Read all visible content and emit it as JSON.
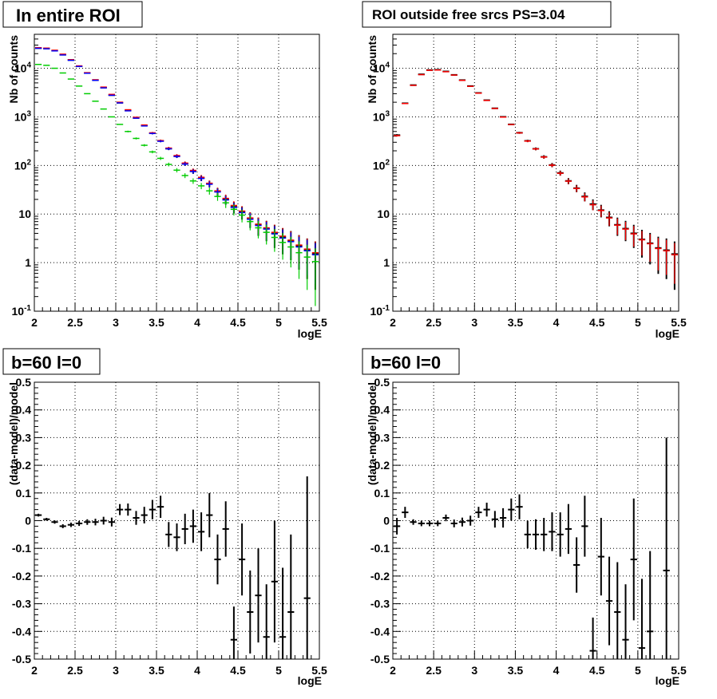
{
  "colors": {
    "data": "#000000",
    "model_total": "#ff0000",
    "model_blue": "#0000ff",
    "model_green": "#00cc00",
    "grid": "#000000",
    "frame": "#000000",
    "title_box_bg": "#ffffff"
  },
  "panels": [
    {
      "title": "In entire ROI",
      "xlabel": "logE",
      "ylabel": "Nb of counts"
    },
    {
      "title": "ROI outside free srcs PS=3.04",
      "xlabel": "logE",
      "ylabel": "Nb of counts"
    },
    {
      "title": "b=60 l=0",
      "xlabel": "logE",
      "ylabel": "(data-model)/model"
    },
    {
      "title": "b=60 l=0",
      "xlabel": "logE",
      "ylabel": "(data-model)/model"
    }
  ],
  "chart_data": [
    {
      "type": "scatter",
      "title": "In entire ROI",
      "xlabel": "logE",
      "ylabel": "Nb of counts",
      "log_y": true,
      "grid": true,
      "xlim": [
        2,
        5.5
      ],
      "ylim": [
        0.1,
        50000
      ],
      "x_ticks": [
        "2",
        "2.5",
        "3",
        "3.5",
        "4",
        "4.5",
        "5",
        "5.5"
      ],
      "y_ticks": [
        "10^-1",
        "1",
        "10",
        "10^2",
        "10^3",
        "10^4"
      ],
      "bin_width": 0.1,
      "x": [
        2.05,
        2.15,
        2.25,
        2.35,
        2.45,
        2.55,
        2.65,
        2.75,
        2.85,
        2.95,
        3.05,
        3.15,
        3.25,
        3.35,
        3.45,
        3.55,
        3.65,
        3.75,
        3.85,
        3.95,
        4.05,
        4.15,
        4.25,
        4.35,
        4.45,
        4.55,
        4.65,
        4.75,
        4.85,
        4.95,
        5.05,
        5.15,
        5.25,
        5.35,
        5.45
      ],
      "series": [
        {
          "style": "data points with error bars",
          "color": "#000000",
          "values": [
            26000,
            25500,
            23000,
            19000,
            14800,
            11000,
            8000,
            5700,
            4000,
            2800,
            1950,
            1350,
            950,
            660,
            460,
            320,
            222,
            155,
            108,
            76,
            55,
            42,
            29,
            20,
            14,
            11,
            8,
            6,
            5,
            4,
            3.3,
            2.8,
            2.2,
            1.8,
            1.5
          ]
        },
        {
          "style": "model steps",
          "color": "#ff0000",
          "values": [
            26500,
            26000,
            23500,
            19500,
            15000,
            11200,
            8100,
            5800,
            4100,
            2900,
            2000,
            1400,
            980,
            680,
            470,
            325,
            228,
            160,
            112,
            79,
            57,
            43,
            30,
            21,
            15,
            11.5,
            8.3,
            6.2,
            5.2,
            4.2,
            3.5,
            2.9,
            2.3,
            1.9,
            1.6
          ]
        },
        {
          "style": "model steps",
          "color": "#0000ff",
          "values": [
            25800,
            25200,
            22800,
            18800,
            14600,
            10900,
            7900,
            5650,
            3950,
            2780,
            1940,
            1330,
            940,
            650,
            455,
            315,
            220,
            153,
            107,
            75,
            54,
            41,
            28.5,
            19.5,
            13.7,
            10.7,
            7.8,
            5.8,
            4.9,
            3.9,
            3.2,
            2.7,
            2.1,
            1.75,
            1.45
          ]
        },
        {
          "style": "model steps",
          "color": "#00cc00",
          "values": [
            12000,
            11500,
            10000,
            8000,
            6000,
            4300,
            3000,
            2100,
            1450,
            1000,
            700,
            500,
            360,
            260,
            190,
            140,
            105,
            80,
            62,
            48,
            38,
            30,
            23,
            17,
            12.5,
            9.5,
            7,
            5.2,
            4.2,
            3.3,
            2.6,
            2.1,
            1.6,
            1.3,
            1.05
          ]
        }
      ]
    },
    {
      "type": "scatter",
      "title": "ROI outside free srcs PS=3.04",
      "xlabel": "logE",
      "ylabel": "Nb of counts",
      "log_y": true,
      "grid": true,
      "xlim": [
        2,
        5.5
      ],
      "ylim": [
        0.1,
        50000
      ],
      "x_ticks": [
        "2",
        "2.5",
        "3",
        "3.5",
        "4",
        "4.5",
        "5",
        "5.5"
      ],
      "y_ticks": [
        "10^-1",
        "1",
        "10",
        "10^2",
        "10^3",
        "10^4"
      ],
      "bin_width": 0.1,
      "x": [
        2.05,
        2.15,
        2.25,
        2.35,
        2.45,
        2.55,
        2.65,
        2.75,
        2.85,
        2.95,
        3.05,
        3.15,
        3.25,
        3.35,
        3.45,
        3.55,
        3.65,
        3.75,
        3.85,
        3.95,
        4.05,
        4.15,
        4.25,
        4.35,
        4.45,
        4.55,
        4.65,
        4.75,
        4.85,
        4.95,
        5.05,
        5.15,
        5.25,
        5.35,
        5.45
      ],
      "series": [
        {
          "style": "data points with error bars",
          "color": "#000000",
          "values": [
            420,
            1900,
            4500,
            7500,
            9200,
            9300,
            8600,
            7300,
            5700,
            4300,
            3100,
            2200,
            1500,
            1000,
            700,
            470,
            320,
            220,
            150,
            102,
            70,
            48,
            34,
            23,
            16,
            12,
            8.5,
            6,
            5,
            4,
            3,
            2.5,
            2,
            1.8,
            1.5
          ]
        },
        {
          "style": "model steps",
          "color": "#ff0000",
          "values": [
            410,
            1880,
            4450,
            7400,
            9100,
            9200,
            8500,
            7250,
            5650,
            4250,
            3080,
            2180,
            1490,
            990,
            695,
            468,
            318,
            219,
            149,
            101,
            69,
            47.5,
            33.5,
            22.5,
            15.5,
            11.8,
            8.3,
            5.9,
            4.9,
            3.9,
            2.95,
            2.45,
            1.95,
            1.75,
            1.45
          ]
        }
      ]
    },
    {
      "type": "scatter",
      "title": "b=60 l=0",
      "xlabel": "logE",
      "ylabel": "(data-model)/model",
      "grid": true,
      "xlim": [
        2,
        5.5
      ],
      "ylim": [
        -0.5,
        0.5
      ],
      "x_ticks": [
        "2",
        "2.5",
        "3",
        "3.5",
        "4",
        "4.5",
        "5",
        "5.5"
      ],
      "y_ticks": [
        "-0.5",
        "-0.4",
        "-0.3",
        "-0.2",
        "-0.1",
        "0",
        "0.1",
        "0.2",
        "0.3",
        "0.4",
        "0.5"
      ],
      "bin_width": 0.1,
      "x": [
        2.05,
        2.15,
        2.25,
        2.35,
        2.45,
        2.55,
        2.65,
        2.75,
        2.85,
        2.95,
        3.05,
        3.15,
        3.25,
        3.35,
        3.45,
        3.55,
        3.65,
        3.75,
        3.85,
        3.95,
        4.05,
        4.15,
        4.25,
        4.35,
        4.45,
        4.55,
        4.65,
        4.75,
        4.85,
        4.95,
        5.05,
        5.15,
        5.25,
        5.35,
        5.45
      ],
      "series": [
        {
          "style": "residuals with error bars",
          "color": "#000000",
          "values": [
            0.02,
            0.005,
            -0.005,
            -0.02,
            -0.015,
            -0.01,
            -0.005,
            -0.005,
            0.0,
            -0.005,
            0.04,
            0.04,
            0.01,
            0.02,
            0.04,
            0.05,
            -0.05,
            -0.06,
            -0.03,
            -0.02,
            -0.04,
            0.02,
            -0.14,
            -0.03,
            -0.43,
            -0.14,
            -0.33,
            -0.27,
            -0.42,
            -0.22,
            -0.42,
            -0.33,
            null,
            -0.28,
            null
          ],
          "errors": [
            0.005,
            0.005,
            0.006,
            0.007,
            0.008,
            0.009,
            0.01,
            0.012,
            0.014,
            0.016,
            0.02,
            0.022,
            0.025,
            0.03,
            0.035,
            0.04,
            0.045,
            0.05,
            0.055,
            0.06,
            0.07,
            0.08,
            0.09,
            0.1,
            0.12,
            0.13,
            0.15,
            0.17,
            0.19,
            0.22,
            0.25,
            0.28,
            null,
            0.44,
            null
          ]
        }
      ]
    },
    {
      "type": "scatter",
      "title": "b=60 l=0",
      "xlabel": "logE",
      "ylabel": "(data-model)/model",
      "grid": true,
      "xlim": [
        2,
        5.5
      ],
      "ylim": [
        -0.5,
        0.5
      ],
      "x_ticks": [
        "2",
        "2.5",
        "3",
        "3.5",
        "4",
        "4.5",
        "5",
        "5.5"
      ],
      "y_ticks": [
        "-0.5",
        "-0.4",
        "-0.3",
        "-0.2",
        "-0.1",
        "0",
        "0.1",
        "0.2",
        "0.3",
        "0.4",
        "0.5"
      ],
      "bin_width": 0.1,
      "x": [
        2.05,
        2.15,
        2.25,
        2.35,
        2.45,
        2.55,
        2.65,
        2.75,
        2.85,
        2.95,
        3.05,
        3.15,
        3.25,
        3.35,
        3.45,
        3.55,
        3.65,
        3.75,
        3.85,
        3.95,
        4.05,
        4.15,
        4.25,
        4.35,
        4.45,
        4.55,
        4.65,
        4.75,
        4.85,
        4.95,
        5.05,
        5.15,
        5.25,
        5.35,
        5.45
      ],
      "series": [
        {
          "style": "residuals with error bars",
          "color": "#000000",
          "values": [
            -0.02,
            0.03,
            -0.005,
            -0.01,
            -0.01,
            -0.01,
            0.01,
            -0.01,
            -0.005,
            0.0,
            0.03,
            0.04,
            0.005,
            0.01,
            0.04,
            0.05,
            -0.05,
            -0.05,
            -0.05,
            -0.04,
            -0.05,
            -0.03,
            -0.16,
            -0.02,
            -0.47,
            -0.13,
            -0.29,
            -0.33,
            -0.43,
            -0.14,
            -0.46,
            -0.4,
            null,
            -0.18,
            null
          ],
          "errors": [
            0.03,
            0.02,
            0.01,
            0.01,
            0.01,
            0.01,
            0.012,
            0.014,
            0.016,
            0.018,
            0.02,
            0.025,
            0.03,
            0.035,
            0.04,
            0.045,
            0.05,
            0.055,
            0.06,
            0.07,
            0.08,
            0.09,
            0.1,
            0.11,
            0.12,
            0.14,
            0.16,
            0.18,
            0.2,
            0.22,
            0.25,
            0.29,
            null,
            0.48,
            null
          ]
        }
      ]
    }
  ]
}
